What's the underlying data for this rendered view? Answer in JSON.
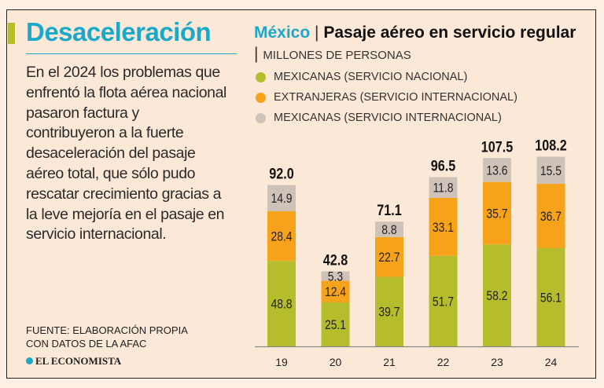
{
  "left": {
    "title": "Desaceleración",
    "body": "En el 2024 los problemas que enfrentó la flota aérea nacional pasaron factura y contribuyeron a la fuerte desaceleración del pasaje aéreo total, que sólo pudo rescatar crecimiento gracias a la leve mejoría en el pasaje en servicio internacional.",
    "source": "FUENTE: ELABORACIÓN PROPIA CON DATOS DE LA AFAC",
    "logo": "EL ECONOMISTA"
  },
  "colors": {
    "accent": "#1ba8c9",
    "green": "#b5bd2c",
    "orange": "#f7a21b",
    "grey": "#cfc2b8"
  },
  "chart_data": {
    "type": "bar",
    "stacked": true,
    "title_country": "México",
    "title": "Pasaje aéreo en servicio regular",
    "unit": "MILLONES DE PERSONAS",
    "categories": [
      "19",
      "20",
      "21",
      "22",
      "23",
      "24"
    ],
    "series": [
      {
        "name": "MEXICANAS (SERVICIO NACIONAL)",
        "color": "#b5bd2c",
        "values": [
          48.8,
          25.1,
          39.7,
          51.7,
          58.2,
          56.1
        ]
      },
      {
        "name": "EXTRANJERAS (SERVICIO INTERNACIONAL)",
        "color": "#f7a21b",
        "values": [
          28.4,
          12.4,
          22.7,
          33.1,
          35.7,
          36.7
        ]
      },
      {
        "name": "MEXICANAS (SERVICIO INTERNACIONAL)",
        "color": "#cfc2b8",
        "values": [
          14.9,
          5.3,
          8.8,
          11.8,
          13.6,
          15.5
        ]
      }
    ],
    "totals": [
      "92.0",
      "42.8",
      "71.1",
      "96.5",
      "107.5",
      "108.2"
    ],
    "ylim": [
      0,
      110
    ],
    "legend": "top-left"
  }
}
